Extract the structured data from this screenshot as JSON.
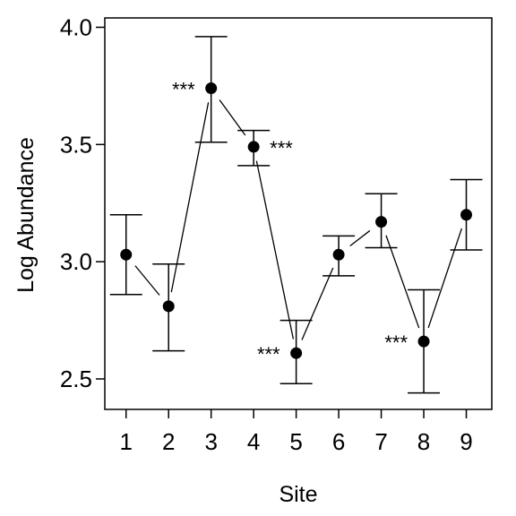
{
  "chart_data": {
    "type": "line",
    "title": "",
    "xlabel": "Site",
    "ylabel": "Log Abundance",
    "xlim": [
      0.5,
      9.6
    ],
    "ylim": [
      2.37,
      4.04
    ],
    "grid": false,
    "legend": "none",
    "x_ticks": [
      "1",
      "2",
      "3",
      "4",
      "5",
      "6",
      "7",
      "8",
      "9"
    ],
    "y_ticks": [
      "2.5",
      "3.0",
      "3.5",
      "4.0"
    ],
    "series": [
      {
        "x": [
          1,
          2,
          3,
          4,
          5,
          6,
          7,
          8,
          9
        ],
        "values": [
          3.03,
          2.81,
          3.74,
          3.49,
          2.61,
          3.03,
          3.17,
          2.66,
          3.2
        ],
        "lower": [
          2.86,
          2.62,
          3.51,
          3.41,
          2.48,
          2.94,
          3.06,
          2.44,
          3.05
        ],
        "upper": [
          3.2,
          2.99,
          3.96,
          3.56,
          2.75,
          3.11,
          3.29,
          2.88,
          3.35
        ]
      }
    ],
    "annotations": [
      {
        "text": "***",
        "x": 3,
        "side": "left"
      },
      {
        "text": "***",
        "x": 4,
        "side": "right"
      },
      {
        "text": "***",
        "x": 5,
        "side": "left"
      },
      {
        "text": "***",
        "x": 8,
        "side": "left"
      }
    ],
    "colors": {
      "line": "#000000",
      "point": "#000000"
    }
  }
}
